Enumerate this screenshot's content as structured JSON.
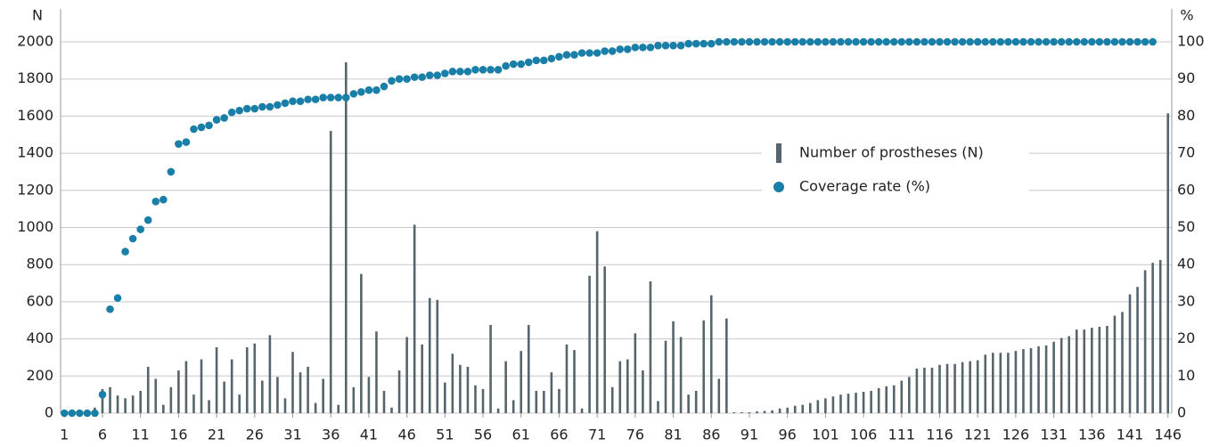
{
  "chart_data": {
    "type": "bar",
    "y_axis_label": "N",
    "y2_axis_label": "%",
    "x": [
      1,
      2,
      3,
      4,
      5,
      6,
      7,
      8,
      9,
      10,
      11,
      12,
      13,
      14,
      15,
      16,
      17,
      18,
      19,
      20,
      21,
      22,
      23,
      24,
      25,
      26,
      27,
      28,
      29,
      30,
      31,
      32,
      33,
      34,
      35,
      36,
      37,
      38,
      39,
      40,
      41,
      42,
      43,
      44,
      45,
      46,
      47,
      48,
      49,
      50,
      51,
      52,
      53,
      54,
      55,
      56,
      57,
      58,
      59,
      60,
      61,
      62,
      63,
      64,
      65,
      66,
      67,
      68,
      69,
      70,
      71,
      72,
      73,
      74,
      75,
      76,
      77,
      78,
      79,
      80,
      81,
      82,
      83,
      84,
      85,
      86,
      87,
      88,
      89,
      90,
      91,
      92,
      93,
      94,
      95,
      96,
      97,
      98,
      99,
      100,
      101,
      102,
      103,
      104,
      105,
      106,
      107,
      108,
      109,
      110,
      111,
      112,
      113,
      114,
      115,
      116,
      117,
      118,
      119,
      120,
      121,
      122,
      123,
      124,
      125,
      126,
      127,
      128,
      129,
      130,
      131,
      132,
      133,
      134,
      135,
      136,
      137,
      138,
      139,
      140,
      141,
      142,
      143,
      144,
      145,
      146
    ],
    "xlim": [
      0.5,
      146.5
    ],
    "xticks": [
      1,
      6,
      11,
      16,
      21,
      26,
      31,
      36,
      41,
      46,
      51,
      56,
      61,
      66,
      71,
      76,
      81,
      86,
      91,
      96,
      101,
      106,
      111,
      116,
      121,
      126,
      131,
      136,
      141,
      146
    ],
    "ylim": [
      0,
      2000
    ],
    "yticks": [
      0,
      200,
      400,
      600,
      800,
      1000,
      1200,
      1400,
      1600,
      1800,
      2000
    ],
    "y2lim": [
      0,
      100
    ],
    "y2ticks": [
      0,
      10,
      20,
      30,
      40,
      50,
      60,
      70,
      80,
      90,
      100
    ],
    "grid": true,
    "legend": "center-right",
    "series": [
      {
        "name": "Number of prostheses (N)",
        "type": "bar",
        "color": "#56646d",
        "values": [
          0,
          0,
          0,
          5,
          30,
          130,
          140,
          95,
          80,
          95,
          120,
          250,
          185,
          45,
          140,
          230,
          280,
          100,
          290,
          70,
          355,
          170,
          290,
          100,
          355,
          375,
          175,
          420,
          195,
          80,
          330,
          220,
          250,
          55,
          185,
          1520,
          45,
          1890,
          140,
          750,
          195,
          440,
          120,
          30,
          230,
          410,
          1015,
          370,
          620,
          610,
          165,
          320,
          260,
          250,
          150,
          130,
          475,
          25,
          280,
          70,
          335,
          475,
          120,
          120,
          220,
          130,
          370,
          340,
          25,
          740,
          980,
          790,
          140,
          280,
          290,
          430,
          230,
          710,
          65,
          390,
          495,
          410,
          100,
          120,
          500,
          635,
          185,
          510,
          5,
          5,
          5,
          10,
          12,
          15,
          25,
          30,
          40,
          45,
          55,
          70,
          80,
          90,
          100,
          105,
          110,
          115,
          120,
          135,
          145,
          150,
          175,
          195,
          240,
          245,
          245,
          260,
          265,
          265,
          275,
          280,
          285,
          315,
          325,
          325,
          325,
          335,
          345,
          350,
          360,
          365,
          385,
          405,
          415,
          450,
          450,
          460,
          465,
          470,
          525,
          545,
          640,
          680,
          770,
          810,
          825,
          1615
        ]
      },
      {
        "name": "Coverage rate (%)",
        "type": "scatter",
        "axis": "y2",
        "color": "#1a7fa8",
        "values": [
          0,
          0,
          0,
          0,
          0,
          5,
          28,
          31,
          43.5,
          47,
          49.5,
          52,
          57,
          57.5,
          65,
          72.5,
          73,
          76.5,
          77,
          77.5,
          79,
          79.5,
          81,
          81.5,
          82,
          82,
          82.5,
          82.5,
          83,
          83.5,
          84,
          84,
          84.5,
          84.5,
          85,
          85,
          85,
          85,
          86,
          86.5,
          87,
          87,
          88,
          89.5,
          90,
          90,
          90.5,
          90.5,
          91,
          91,
          91.5,
          92,
          92,
          92,
          92.5,
          92.5,
          92.5,
          92.5,
          93.5,
          94,
          94,
          94.5,
          95,
          95,
          95.5,
          96,
          96.5,
          96.5,
          97,
          97,
          97,
          97.5,
          97.5,
          98,
          98,
          98.5,
          98.5,
          98.5,
          99,
          99,
          99,
          99,
          99.5,
          99.5,
          99.5,
          99.5,
          100,
          100,
          100,
          100,
          100,
          100,
          100,
          100,
          100,
          100,
          100,
          100,
          100,
          100,
          100,
          100,
          100,
          100,
          100,
          100,
          100,
          100,
          100,
          100,
          100,
          100,
          100,
          100,
          100,
          100,
          100,
          100,
          100,
          100,
          100,
          100,
          100,
          100,
          100,
          100,
          100,
          100,
          100,
          100,
          100,
          100,
          100,
          100,
          100,
          100,
          100,
          100,
          100,
          100,
          100,
          100,
          100,
          100
        ]
      }
    ]
  }
}
